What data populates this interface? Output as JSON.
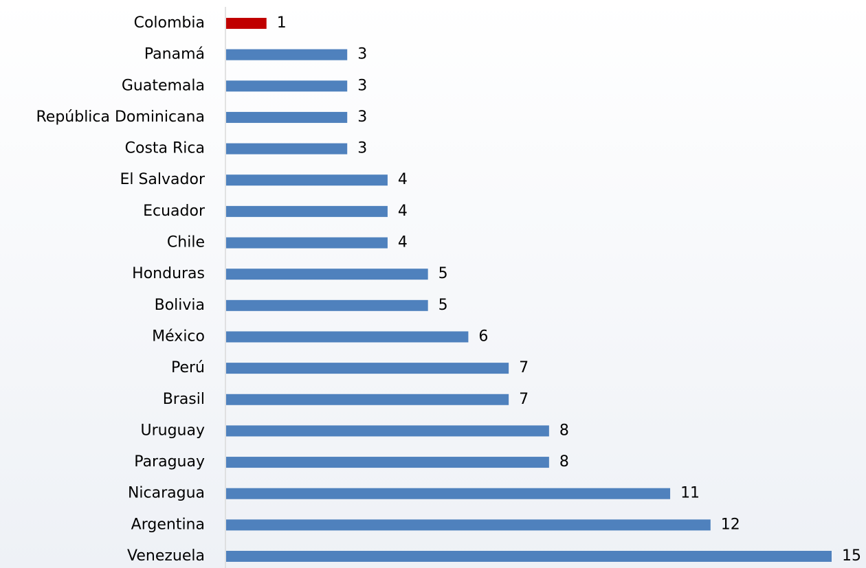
{
  "chart_data": {
    "type": "barh",
    "categories": [
      "Colombia",
      "Panamá",
      "Guatemala",
      "República Dominicana",
      "Costa Rica",
      "El Salvador",
      "Ecuador",
      "Chile",
      "Honduras",
      "Bolivia",
      "México",
      "Perú",
      "Brasil",
      "Uruguay",
      "Paraguay",
      "Nicaragua",
      "Argentina",
      "Venezuela"
    ],
    "values": [
      1,
      3,
      3,
      3,
      3,
      4,
      4,
      4,
      5,
      5,
      6,
      7,
      7,
      8,
      8,
      11,
      12,
      15
    ],
    "colors": [
      "#c00000",
      "#4f81bd",
      "#4f81bd",
      "#4f81bd",
      "#4f81bd",
      "#4f81bd",
      "#4f81bd",
      "#4f81bd",
      "#4f81bd",
      "#4f81bd",
      "#4f81bd",
      "#4f81bd",
      "#4f81bd",
      "#4f81bd",
      "#4f81bd",
      "#4f81bd",
      "#4f81bd",
      "#4f81bd"
    ]
  }
}
